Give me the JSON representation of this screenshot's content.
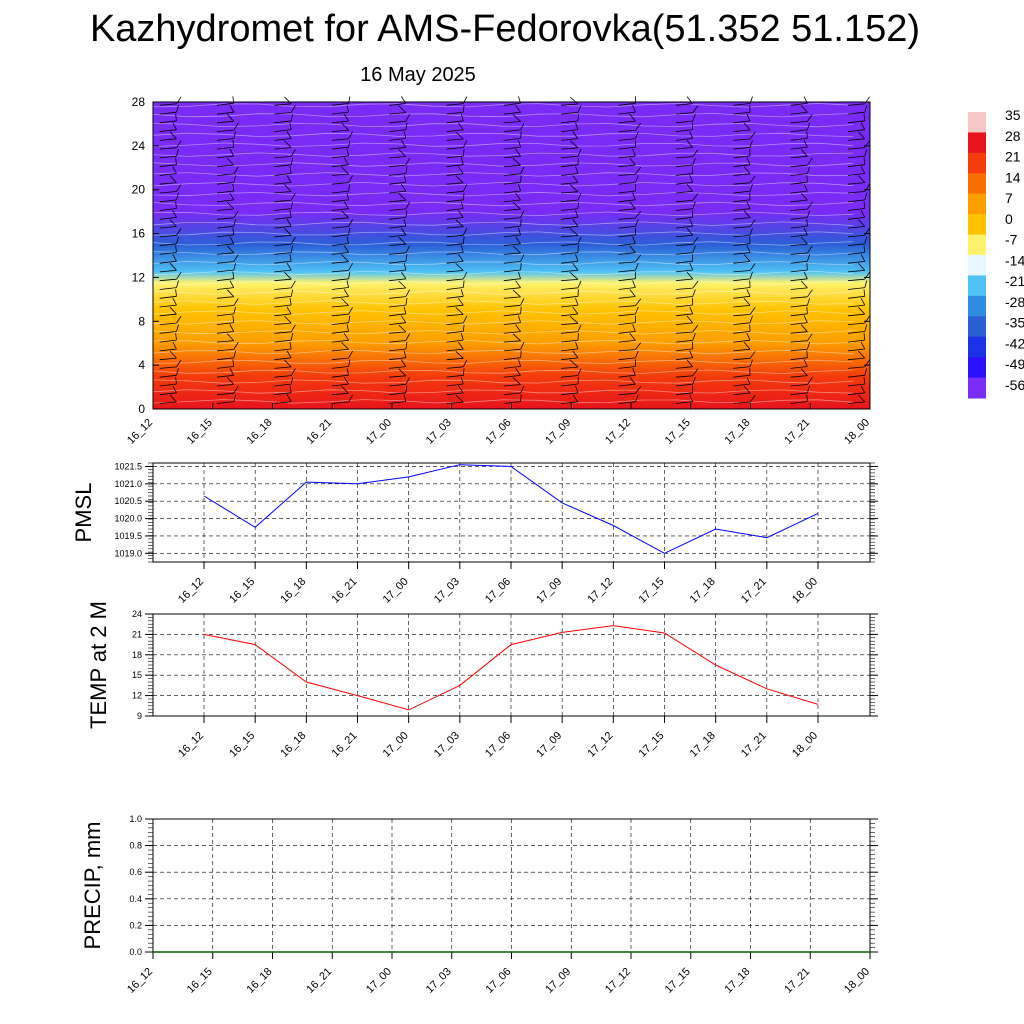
{
  "title": "Kazhydromet for AMS-Fedorovka(51.352 51.152)",
  "subtitle": "16 May 2025",
  "chart_data": [
    {
      "id": "cross_section",
      "type": "heatmap",
      "x_categories": [
        "16_12",
        "16_15",
        "16_18",
        "16_21",
        "17_00",
        "17_03",
        "17_06",
        "17_09",
        "17_12",
        "17_15",
        "17_18",
        "17_21",
        "18_00"
      ],
      "ylim": [
        0,
        28
      ],
      "yticks": [
        "0",
        "4",
        "8",
        "12",
        "16",
        "20",
        "24",
        "28"
      ],
      "colorbar": {
        "labels": [
          "35",
          "28",
          "21",
          "14",
          "7",
          "0",
          "-7",
          "-14",
          "-21",
          "-28",
          "-35",
          "-42",
          "-49",
          "-56"
        ],
        "colors": [
          "#f4c7c4",
          "#e8141c",
          "#f43c0c",
          "#fa7000",
          "#fc9e00",
          "#ffc200",
          "#fff26e",
          "#e6f7ff",
          "#4fc3f5",
          "#2d8ce0",
          "#2a5fd6",
          "#1c32e6",
          "#2a10ff",
          "#7a2bf6"
        ]
      },
      "temperature_profile": [
        {
          "height": 0,
          "temp": 30
        },
        {
          "height": 3,
          "temp": 22
        },
        {
          "height": 6,
          "temp": 12
        },
        {
          "height": 9,
          "temp": 3
        },
        {
          "height": 11.5,
          "temp": -6
        },
        {
          "height": 12.5,
          "temp": -16
        },
        {
          "height": 15,
          "temp": -32
        },
        {
          "height": 18,
          "temp": -50
        },
        {
          "height": 21,
          "temp": -52
        },
        {
          "height": 24,
          "temp": -54
        },
        {
          "height": 26,
          "temp": -57
        },
        {
          "height": 28,
          "temp": -60
        }
      ]
    },
    {
      "id": "pmsl",
      "type": "line",
      "ylabel": "PMSL",
      "x": [
        "16_12",
        "16_15",
        "16_18",
        "16_21",
        "17_00",
        "17_03",
        "17_06",
        "17_09",
        "17_12",
        "17_15",
        "17_18",
        "17_21",
        "18_00"
      ],
      "values": [
        1020.65,
        1019.75,
        1021.05,
        1021.0,
        1021.2,
        1021.55,
        1021.5,
        1020.45,
        1019.8,
        1019.0,
        1019.7,
        1019.45,
        1020.15
      ],
      "ylim": [
        1018.75,
        1021.6
      ],
      "yticks": [
        "1019.0",
        "1019.5",
        "1020.0",
        "1020.5",
        "1021.0",
        "1021.5"
      ],
      "color": "#0000ff",
      "grid": true
    },
    {
      "id": "temp2m",
      "type": "line",
      "ylabel": "TEMP at 2 M",
      "x": [
        "16_12",
        "16_15",
        "16_18",
        "16_21",
        "17_00",
        "17_03",
        "17_06",
        "17_09",
        "17_12",
        "17_15",
        "17_18",
        "17_21",
        "18_00"
      ],
      "values": [
        21.0,
        19.5,
        14.0,
        12.0,
        9.9,
        13.5,
        19.5,
        21.3,
        22.3,
        21.2,
        16.5,
        13.0,
        10.7
      ],
      "ylim": [
        9,
        24
      ],
      "yticks": [
        "9",
        "12",
        "15",
        "18",
        "21",
        "24"
      ],
      "color": "#ff0000",
      "grid": true
    },
    {
      "id": "precip",
      "type": "line",
      "ylabel": "PRECIP, mm",
      "x": [
        "16_12",
        "16_15",
        "16_18",
        "16_21",
        "17_00",
        "17_03",
        "17_06",
        "17_09",
        "17_12",
        "17_15",
        "17_18",
        "17_21",
        "18_00"
      ],
      "values": [
        0,
        0,
        0,
        0,
        0,
        0,
        0,
        0,
        0,
        0,
        0,
        0,
        0
      ],
      "ylim": [
        0,
        1.0
      ],
      "yticks": [
        "0.0",
        "0.2",
        "0.4",
        "0.6",
        "0.8",
        "1.0"
      ],
      "color": "#006400",
      "grid": true
    }
  ]
}
